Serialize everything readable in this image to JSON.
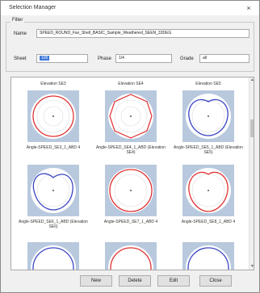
{
  "window": {
    "title": "Selection Manager",
    "close_glyph": "×"
  },
  "filter_group": {
    "label": "Filter",
    "name_label": "Name",
    "name_value": "SPEED_ROUND_Fav_Shell_BASIC_Sample_Weathered_SEEN_33DEG",
    "sheet_label": "Sheet",
    "sheet_value": "100",
    "phase_label": "Phase",
    "phase_value": "1/4",
    "grade_label": "Grade",
    "grade_value": "all"
  },
  "grid": {
    "top_labels": [
      "Elevation SE3",
      "Elevation SE4",
      "Elevation SE5"
    ],
    "rows": [
      {
        "labels": [
          "Angle-SPEED_SE3_1_ABD 4",
          "Angle-SPEED_SE4_1_ABD (Elevation SE4)",
          "Angle-SPEED_SE5_1_ABD (Elevation SE5)"
        ]
      },
      {
        "labels": [
          "Angle-SPEED_SE6_1_ABD (Elevation SE6)",
          "Angle-SPEED_SE7_1_ABD 4",
          "Angle-SPEED_SE8_1_ABD 4"
        ]
      }
    ]
  },
  "buttons": {
    "new": "New",
    "delete": "Delete",
    "edit": "Edit",
    "close": "Close"
  },
  "colors": {
    "selection": "#3b78d8",
    "polar_red": "#e03030",
    "polar_blue": "#3b46c4",
    "bg_fill": "#b8c9de"
  }
}
